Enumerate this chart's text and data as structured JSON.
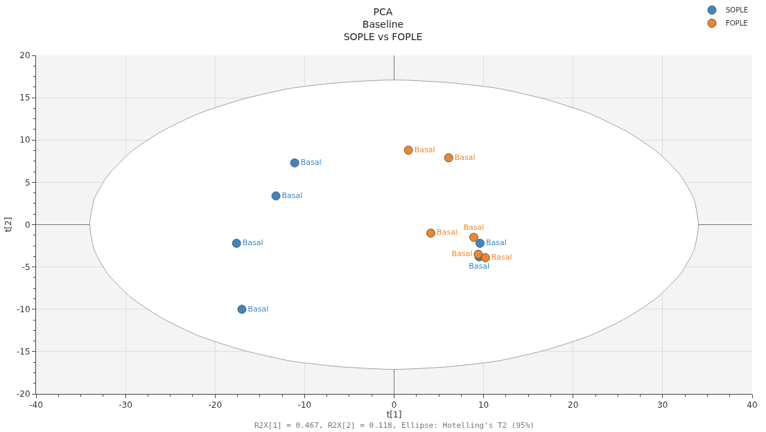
{
  "chart_data": {
    "type": "scatter",
    "title": "PCA\nBaseline\nSOPLE vs FOPLE",
    "xlabel": "t[1]",
    "ylabel": "t[2]",
    "xlim": [
      -40,
      40
    ],
    "xticks": [
      -40,
      -30,
      -20,
      -10,
      0,
      10,
      20,
      30,
      40
    ],
    "ylim": [
      -20,
      20
    ],
    "yticks": [
      -20,
      -15,
      -10,
      -5,
      0,
      5,
      10,
      15,
      20
    ],
    "grid": true,
    "legend": "top right",
    "marker": "circle",
    "annotations": [
      "R2X[1] = 0.467, R2X[2] = 0.118, Ellipse: Hotelling's T2 (95%)"
    ],
    "series": [
      {
        "type": "area",
        "marker": "none",
        "color": "#a0a0a0",
        "x": [
          34,
          33.5,
          32,
          29.4,
          26,
          21.9,
          17,
          11.6,
          5.9,
          0,
          -5.9,
          -11.6,
          -17,
          -21.9,
          -26,
          -29.4,
          -32,
          -33.5,
          -34,
          -33.5,
          -32,
          -29.4,
          -26,
          -21.9,
          -17,
          -11.6,
          -5.9,
          0,
          5.9,
          11.6,
          17,
          21.9,
          26,
          29.4,
          32,
          33.5,
          34
        ],
        "values": [
          0,
          3,
          5.8,
          8.6,
          11,
          13.1,
          14.8,
          16.1,
          16.8,
          17.1,
          16.8,
          16.1,
          14.8,
          13.1,
          11,
          8.6,
          5.8,
          3,
          0,
          -3,
          -5.8,
          -8.6,
          -11,
          -13.1,
          -14.8,
          -16.1,
          -16.8,
          -17.1,
          -16.8,
          -16.1,
          -14.8,
          -13.1,
          -11,
          -8.6,
          -5.8,
          -3,
          0
        ]
      },
      {
        "name": "SOPLE",
        "color": "#3a87c8",
        "x": [
          -11.1,
          -13.2,
          -17.6,
          -17.0,
          9.6,
          9.5
        ],
        "values": [
          7.3,
          3.4,
          -2.2,
          -10.0,
          -2.2,
          -3.8
        ],
        "value_labels": [
          "Basal",
          "Basal",
          "Basal",
          "Basal",
          "Basal",
          "Basal"
        ]
      },
      {
        "name": "FOPLE",
        "color": "#f0862a",
        "x": [
          1.6,
          6.1,
          4.1,
          8.9,
          9.4,
          10.2
        ],
        "values": [
          8.8,
          7.9,
          -1.0,
          -1.5,
          -3.5,
          -3.9
        ],
        "value_labels": [
          "Basal",
          "Basal",
          "Basal",
          "Basal",
          "Basal",
          "Basal"
        ]
      }
    ]
  }
}
